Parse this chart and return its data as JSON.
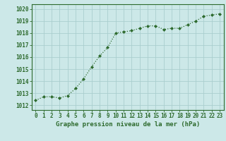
{
  "x": [
    0,
    1,
    2,
    3,
    4,
    5,
    6,
    7,
    8,
    9,
    10,
    11,
    12,
    13,
    14,
    15,
    16,
    17,
    18,
    19,
    20,
    21,
    22,
    23
  ],
  "y": [
    1012.4,
    1012.7,
    1012.7,
    1012.6,
    1012.8,
    1013.4,
    1014.2,
    1015.2,
    1016.1,
    1016.8,
    1018.0,
    1018.1,
    1018.2,
    1018.4,
    1018.6,
    1018.6,
    1018.3,
    1018.4,
    1018.4,
    1018.7,
    1019.0,
    1019.4,
    1019.5,
    1019.6
  ],
  "line_color": "#2d6a2d",
  "marker": "D",
  "marker_size": 2.0,
  "line_width": 0.9,
  "bg_color": "#cce8e8",
  "grid_color": "#aacece",
  "title": "Graphe pression niveau de la mer (hPa)",
  "ylabel_ticks": [
    1012,
    1013,
    1014,
    1015,
    1016,
    1017,
    1018,
    1019,
    1020
  ],
  "xlabel_ticks": [
    0,
    1,
    2,
    3,
    4,
    5,
    6,
    7,
    8,
    9,
    10,
    11,
    12,
    13,
    14,
    15,
    16,
    17,
    18,
    19,
    20,
    21,
    22,
    23
  ],
  "ylim": [
    1011.6,
    1020.4
  ],
  "xlim": [
    -0.5,
    23.5
  ],
  "title_fontsize": 6.5,
  "tick_fontsize": 5.5,
  "title_color": "#2d6a2d",
  "tick_color": "#2d6a2d",
  "spine_color": "#2d6a2d"
}
